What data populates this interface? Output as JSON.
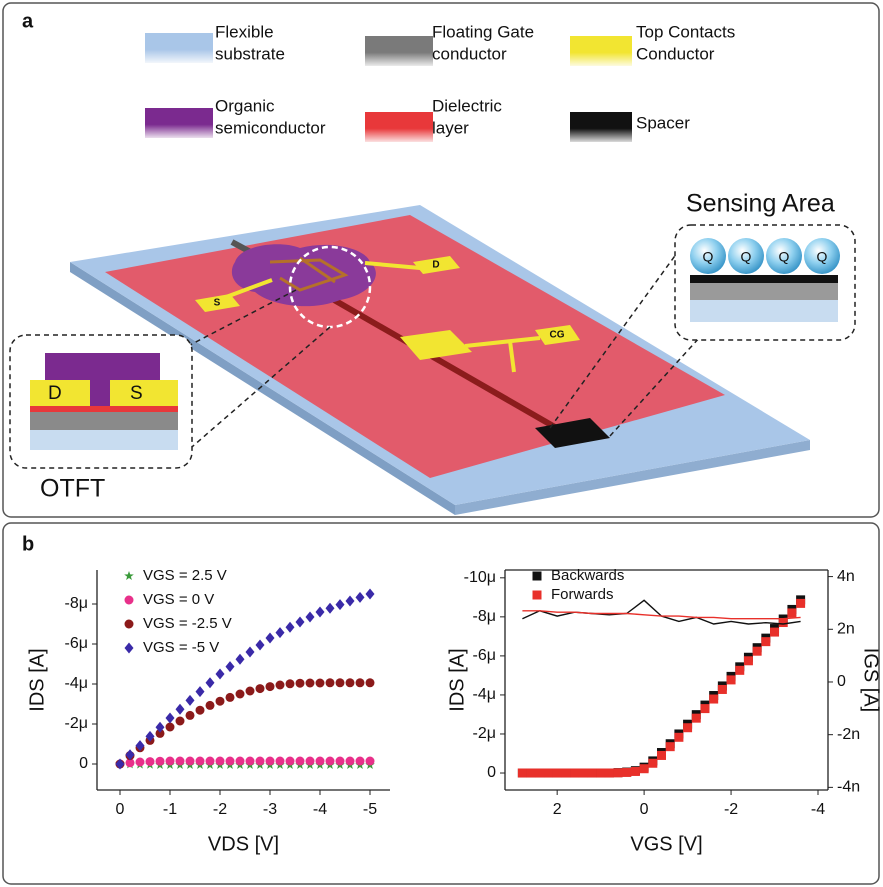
{
  "panel_a": {
    "label": "a",
    "legend": [
      {
        "lines": [
          "Flexible",
          "substrate"
        ]
      },
      {
        "lines": [
          "Floating Gate",
          "conductor"
        ]
      },
      {
        "lines": [
          "Top Contacts",
          "Conductor"
        ]
      },
      {
        "lines": [
          "Organic",
          "semiconductor"
        ]
      },
      {
        "lines": [
          "Dielectric",
          "layer"
        ]
      },
      {
        "lines": [
          "Spacer"
        ]
      }
    ],
    "pads": [
      "S",
      "D",
      "CG"
    ],
    "otft_inset": {
      "title": "OTFT",
      "labels": [
        "D",
        "S"
      ]
    },
    "sensing_inset": {
      "title": "Sensing Area",
      "charges": [
        "Q",
        "Q",
        "Q",
        "Q"
      ]
    }
  },
  "panel_b": {
    "label": "b"
  },
  "chart_data": [
    {
      "type": "scatter",
      "xlabel": "VDS [V]",
      "ylabel": "IDS [A]",
      "x": [
        0,
        -0.2,
        -0.4,
        -0.6,
        -0.8,
        -1,
        -1.2,
        -1.4,
        -1.6,
        -1.8,
        -2,
        -2.2,
        -2.4,
        -2.6,
        -2.8,
        -3,
        -3.2,
        -3.4,
        -3.6,
        -3.8,
        -4,
        -4.2,
        -4.4,
        -4.6,
        -4.8,
        -5
      ],
      "xlim": [
        0.46,
        -5.4
      ],
      "xticks": [
        0,
        -1,
        -2,
        -3,
        -4,
        -5
      ],
      "ylim": [
        1.3,
        -9.7
      ],
      "yticks": [
        0,
        {
          "value": -2,
          "label": "-2μ"
        },
        {
          "value": -4,
          "label": "-4μ"
        },
        {
          "value": -6,
          "label": "-6μ"
        },
        {
          "value": -8,
          "label": "-8μ"
        }
      ],
      "legend": "upper-left",
      "series": [
        {
          "name": "VGS = 2.5 V",
          "color": "#3a9a3a",
          "marker": "star",
          "values": [
            0,
            0.02,
            0.03,
            0.04,
            0.05,
            0.05,
            0.05,
            0.05,
            0.05,
            0.05,
            0.05,
            0.05,
            0.05,
            0.05,
            0.05,
            0.05,
            0.05,
            0.05,
            0.05,
            0.05,
            0.05,
            0.05,
            0.05,
            0.05,
            0.05,
            0.05
          ]
        },
        {
          "name": "VGS = 0 V",
          "color": "#e8308a",
          "marker": "circle",
          "values": [
            0,
            -0.06,
            -0.1,
            -0.12,
            -0.14,
            -0.15,
            -0.15,
            -0.15,
            -0.15,
            -0.15,
            -0.15,
            -0.15,
            -0.15,
            -0.15,
            -0.15,
            -0.15,
            -0.15,
            -0.15,
            -0.15,
            -0.15,
            -0.15,
            -0.15,
            -0.15,
            -0.15,
            -0.15,
            -0.15
          ]
        },
        {
          "name": "VGS = -2.5 V",
          "color": "#8b1a1a",
          "marker": "circle",
          "values": [
            0,
            -0.42,
            -0.81,
            -1.18,
            -1.53,
            -1.85,
            -2.15,
            -2.43,
            -2.69,
            -2.93,
            -3.14,
            -3.33,
            -3.5,
            -3.65,
            -3.77,
            -3.87,
            -3.95,
            -4.01,
            -4.04,
            -4.05,
            -4.05,
            -4.06,
            -4.06,
            -4.06,
            -4.06,
            -4.06
          ]
        },
        {
          "name": "VGS = -5 V",
          "color": "#3a2aa8",
          "marker": "diamond",
          "values": [
            0,
            -0.46,
            -0.92,
            -1.38,
            -1.84,
            -2.3,
            -2.74,
            -3.18,
            -3.62,
            -4.06,
            -4.5,
            -4.87,
            -5.24,
            -5.6,
            -5.95,
            -6.3,
            -6.57,
            -6.84,
            -7.1,
            -7.35,
            -7.6,
            -7.79,
            -7.97,
            -8.15,
            -8.33,
            -8.5
          ]
        }
      ]
    },
    {
      "type": "scatter",
      "xlabel": "VGS [V]",
      "ylabel": "IDS [A]",
      "y2label": "IGS [A]",
      "x": [
        2.8,
        2.6,
        2.4,
        2.2,
        2,
        1.8,
        1.6,
        1.4,
        1.2,
        1,
        0.8,
        0.6,
        0.4,
        0.2,
        0,
        -0.2,
        -0.4,
        -0.6,
        -0.8,
        -1,
        -1.2,
        -1.4,
        -1.6,
        -1.8,
        -2,
        -2.2,
        -2.4,
        -2.6,
        -2.8,
        -3,
        -3.2,
        -3.4,
        -3.6
      ],
      "xlim": [
        3.2,
        -4.23
      ],
      "xticks": [
        2,
        0,
        -2,
        -4
      ],
      "ylim": [
        0.87,
        -10.4
      ],
      "yticks": [
        0,
        {
          "value": -2,
          "label": "-2μ"
        },
        {
          "value": -4,
          "label": "-4μ"
        },
        {
          "value": -6,
          "label": "-6μ"
        },
        {
          "value": -8,
          "label": "-8μ"
        },
        {
          "value": -10,
          "label": "-10μ"
        }
      ],
      "y2lim": [
        -4.1,
        4.25
      ],
      "y2ticks": [
        {
          "value": 4,
          "label": "4n"
        },
        {
          "value": 2,
          "label": "2n"
        },
        0,
        {
          "value": -2,
          "label": "-2n"
        },
        {
          "value": -4,
          "label": "-4n"
        }
      ],
      "legend": "upper-left",
      "series": [
        {
          "name": "Backwards",
          "color": "#111111",
          "marker": "square",
          "values": [
            0,
            0,
            0,
            0,
            0,
            0,
            0,
            0,
            0,
            0,
            0,
            -0.02,
            -0.05,
            -0.12,
            -0.3,
            -0.62,
            -1.05,
            -1.5,
            -2,
            -2.5,
            -2.99,
            -3.48,
            -3.97,
            -4.46,
            -4.95,
            -5.44,
            -5.93,
            -6.42,
            -6.91,
            -7.4,
            -7.89,
            -8.38,
            -8.87
          ]
        },
        {
          "name": "Forwards",
          "color": "#e8302a",
          "marker": "square",
          "values": [
            0,
            0,
            0,
            0,
            0,
            0,
            0,
            0,
            0,
            0,
            0,
            -0.01,
            -0.03,
            -0.08,
            -0.22,
            -0.5,
            -0.9,
            -1.35,
            -1.83,
            -2.32,
            -2.81,
            -3.3,
            -3.79,
            -4.28,
            -4.77,
            -5.26,
            -5.75,
            -6.24,
            -6.73,
            -7.22,
            -7.71,
            -8.2,
            -8.69
          ]
        },
        {
          "color": "#111111",
          "marker": "line",
          "axis": "y2",
          "x": [
            2.8,
            2.4,
            2,
            1.6,
            1.2,
            0.8,
            0.4,
            0,
            -0.4,
            -0.8,
            -1.2,
            -1.6,
            -2,
            -2.4,
            -2.8,
            -3.2,
            -3.6
          ],
          "values": [
            2.4,
            2.7,
            2.5,
            2.65,
            2.6,
            2.55,
            2.6,
            3.1,
            2.5,
            2.3,
            2.45,
            2.2,
            2.3,
            2.2,
            2.25,
            2.2,
            2.3
          ]
        },
        {
          "color": "#e8302a",
          "marker": "line",
          "axis": "y2",
          "x": [
            2.8,
            2.4,
            2,
            1.6,
            1.2,
            0.8,
            0.4,
            0,
            -0.4,
            -0.8,
            -1.2,
            -1.6,
            -2,
            -2.4,
            -2.8,
            -3.2,
            -3.6
          ],
          "values": [
            2.7,
            2.7,
            2.65,
            2.65,
            2.6,
            2.6,
            2.6,
            2.55,
            2.5,
            2.5,
            2.45,
            2.45,
            2.4,
            2.4,
            2.4,
            2.4,
            2.45
          ]
        }
      ]
    }
  ]
}
